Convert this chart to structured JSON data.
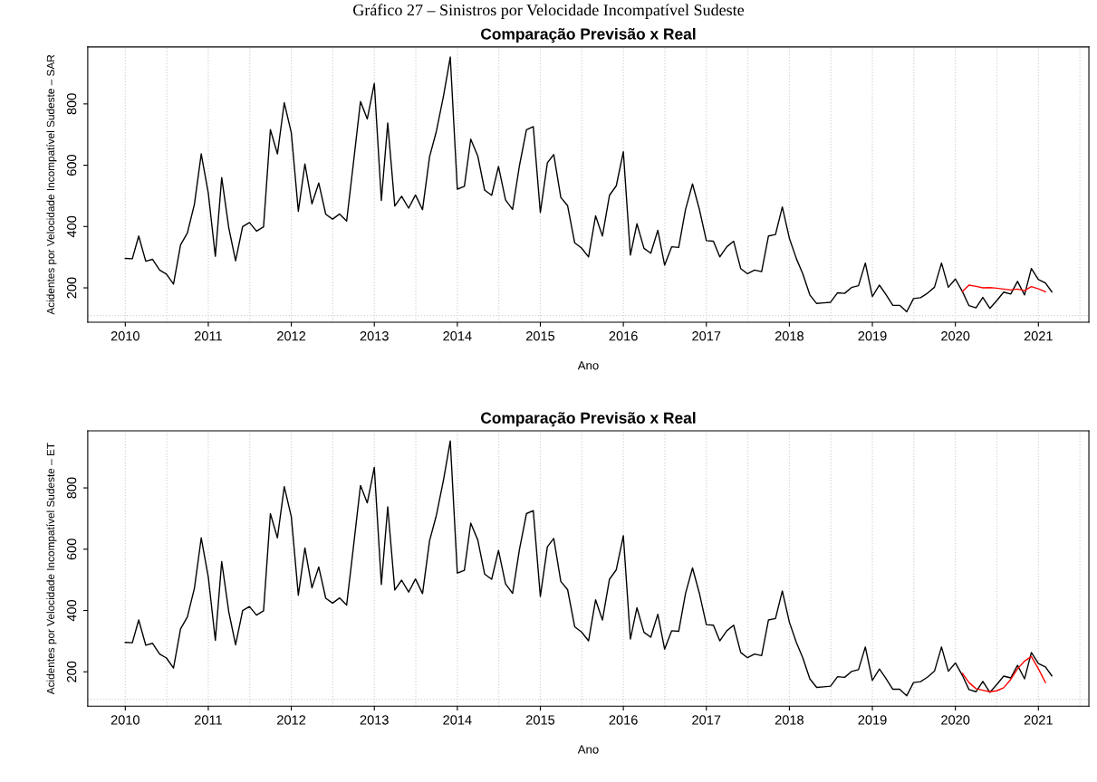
{
  "chart_data": [
    {
      "type": "line",
      "title": "Comparação Previsão x Real",
      "xlabel": "Ano",
      "ylabel": "Acidentes por Velocidade Incompatível Sudeste – SAR",
      "annotations": [
        "Gráfico 27 – Sinistros por Velocidade Incompatível Sudeste"
      ],
      "x": [
        "2010-01",
        "2010-02",
        "2010-03",
        "2010-04",
        "2010-05",
        "2010-06",
        "2010-07",
        "2010-08",
        "2010-09",
        "2010-10",
        "2010-11",
        "2010-12",
        "2011-01",
        "2011-02",
        "2011-03",
        "2011-04",
        "2011-05",
        "2011-06",
        "2011-07",
        "2011-08",
        "2011-09",
        "2011-10",
        "2011-11",
        "2011-12",
        "2012-01",
        "2012-02",
        "2012-03",
        "2012-04",
        "2012-05",
        "2012-06",
        "2012-07",
        "2012-08",
        "2012-09",
        "2012-10",
        "2012-11",
        "2012-12",
        "2013-01",
        "2013-02",
        "2013-03",
        "2013-04",
        "2013-05",
        "2013-06",
        "2013-07",
        "2013-08",
        "2013-09",
        "2013-10",
        "2013-11",
        "2013-12",
        "2014-01",
        "2014-02",
        "2014-03",
        "2014-04",
        "2014-05",
        "2014-06",
        "2014-07",
        "2014-08",
        "2014-09",
        "2014-10",
        "2014-11",
        "2014-12",
        "2015-01",
        "2015-02",
        "2015-03",
        "2015-04",
        "2015-05",
        "2015-06",
        "2015-07",
        "2015-08",
        "2015-09",
        "2015-10",
        "2015-11",
        "2015-12",
        "2016-01",
        "2016-02",
        "2016-03",
        "2016-04",
        "2016-05",
        "2016-06",
        "2016-07",
        "2016-08",
        "2016-09",
        "2016-10",
        "2016-11",
        "2016-12",
        "2017-01",
        "2017-02",
        "2017-03",
        "2017-04",
        "2017-05",
        "2017-06",
        "2017-07",
        "2017-08",
        "2017-09",
        "2017-10",
        "2017-11",
        "2017-12",
        "2018-01",
        "2018-02",
        "2018-03",
        "2018-04",
        "2018-05",
        "2018-06",
        "2018-07",
        "2018-08",
        "2018-09",
        "2018-10",
        "2018-11",
        "2018-12",
        "2019-01",
        "2019-02",
        "2019-03",
        "2019-04",
        "2019-05",
        "2019-06",
        "2019-07",
        "2019-08",
        "2019-09",
        "2019-10",
        "2019-11",
        "2019-12",
        "2020-01",
        "2020-02",
        "2020-03",
        "2020-04",
        "2020-05",
        "2020-06",
        "2020-07",
        "2020-08",
        "2020-09",
        "2020-10",
        "2020-11",
        "2020-12",
        "2021-01",
        "2021-02",
        "2021-03"
      ],
      "series": [
        {
          "color": "#000000",
          "values": [
            296,
            295,
            369,
            287,
            293,
            258,
            245,
            212,
            340,
            379,
            473,
            637,
            509,
            303,
            560,
            396,
            288,
            400,
            413,
            385,
            399,
            716,
            637,
            804,
            706,
            450,
            604,
            474,
            542,
            440,
            424,
            441,
            418,
            608,
            808,
            751,
            867,
            485,
            738,
            467,
            499,
            460,
            503,
            455,
            628,
            711,
            825,
            953,
            522,
            531,
            685,
            630,
            519,
            502,
            596,
            487,
            456,
            598,
            716,
            726,
            446,
            608,
            635,
            495,
            468,
            347,
            330,
            301,
            435,
            369,
            502,
            533,
            644,
            307,
            409,
            329,
            313,
            388,
            274,
            334,
            332,
            455,
            539,
            457,
            354,
            352,
            301,
            334,
            352,
            263,
            246,
            258,
            253,
            369,
            374,
            464,
            362,
            295,
            246,
            177,
            149,
            151,
            153,
            184,
            182,
            201,
            207,
            281,
            172,
            209,
            179,
            143,
            143,
            122,
            165,
            168,
            183,
            202,
            281,
            202,
            229,
            188,
            142,
            135,
            169,
            133,
            158,
            186,
            180,
            221,
            177,
            263,
            227,
            216,
            187
          ]
        },
        {
          "color": "#ff0000",
          "x": [
            "2020-02",
            "2020-03",
            "2020-04",
            "2020-05",
            "2020-06",
            "2020-07",
            "2020-08",
            "2020-09",
            "2020-10",
            "2020-11",
            "2020-12",
            "2021-01",
            "2021-02"
          ],
          "values": [
            188,
            209,
            205,
            200,
            201,
            199,
            196,
            193,
            196,
            191,
            204,
            197,
            187
          ]
        }
      ],
      "xlim": [
        "2009-07-20",
        "2021-08-11"
      ],
      "xticks": [
        {
          "value": "2010",
          "label": "2010"
        },
        {
          "value": "2011",
          "label": "2011"
        },
        {
          "value": "2012",
          "label": "2012"
        },
        {
          "value": "2013",
          "label": "2013"
        },
        {
          "value": "2014",
          "label": "2014"
        },
        {
          "value": "2015",
          "label": "2015"
        },
        {
          "value": "2016",
          "label": "2016"
        },
        {
          "value": "2017",
          "label": "2017"
        },
        {
          "value": "2018",
          "label": "2018"
        },
        {
          "value": "2019",
          "label": "2019"
        },
        {
          "value": "2020",
          "label": "2020"
        },
        {
          "value": "2021",
          "label": "2021"
        }
      ],
      "ylim": [
        88,
        986
      ],
      "yticks": [
        200,
        400,
        600,
        800
      ],
      "grid": "x",
      "ref_lines": [
        {
          "axis": "y",
          "value": 110,
          "color": "#d3d3d3",
          "line_style": "dotted"
        }
      ]
    },
    {
      "type": "line",
      "title": "Comparação Previsão x Real",
      "xlabel": "Ano",
      "ylabel": "Acidentes por Velocidade Incompatível Sudeste – ET",
      "x": [
        "2010-01",
        "2010-02",
        "2010-03",
        "2010-04",
        "2010-05",
        "2010-06",
        "2010-07",
        "2010-08",
        "2010-09",
        "2010-10",
        "2010-11",
        "2010-12",
        "2011-01",
        "2011-02",
        "2011-03",
        "2011-04",
        "2011-05",
        "2011-06",
        "2011-07",
        "2011-08",
        "2011-09",
        "2011-10",
        "2011-11",
        "2011-12",
        "2012-01",
        "2012-02",
        "2012-03",
        "2012-04",
        "2012-05",
        "2012-06",
        "2012-07",
        "2012-08",
        "2012-09",
        "2012-10",
        "2012-11",
        "2012-12",
        "2013-01",
        "2013-02",
        "2013-03",
        "2013-04",
        "2013-05",
        "2013-06",
        "2013-07",
        "2013-08",
        "2013-09",
        "2013-10",
        "2013-11",
        "2013-12",
        "2014-01",
        "2014-02",
        "2014-03",
        "2014-04",
        "2014-05",
        "2014-06",
        "2014-07",
        "2014-08",
        "2014-09",
        "2014-10",
        "2014-11",
        "2014-12",
        "2015-01",
        "2015-02",
        "2015-03",
        "2015-04",
        "2015-05",
        "2015-06",
        "2015-07",
        "2015-08",
        "2015-09",
        "2015-10",
        "2015-11",
        "2015-12",
        "2016-01",
        "2016-02",
        "2016-03",
        "2016-04",
        "2016-05",
        "2016-06",
        "2016-07",
        "2016-08",
        "2016-09",
        "2016-10",
        "2016-11",
        "2016-12",
        "2017-01",
        "2017-02",
        "2017-03",
        "2017-04",
        "2017-05",
        "2017-06",
        "2017-07",
        "2017-08",
        "2017-09",
        "2017-10",
        "2017-11",
        "2017-12",
        "2018-01",
        "2018-02",
        "2018-03",
        "2018-04",
        "2018-05",
        "2018-06",
        "2018-07",
        "2018-08",
        "2018-09",
        "2018-10",
        "2018-11",
        "2018-12",
        "2019-01",
        "2019-02",
        "2019-03",
        "2019-04",
        "2019-05",
        "2019-06",
        "2019-07",
        "2019-08",
        "2019-09",
        "2019-10",
        "2019-11",
        "2019-12",
        "2020-01",
        "2020-02",
        "2020-03",
        "2020-04",
        "2020-05",
        "2020-06",
        "2020-07",
        "2020-08",
        "2020-09",
        "2020-10",
        "2020-11",
        "2020-12",
        "2021-01",
        "2021-02",
        "2021-03"
      ],
      "series": [
        {
          "color": "#000000",
          "values": [
            296,
            295,
            369,
            287,
            293,
            258,
            245,
            212,
            340,
            379,
            473,
            637,
            509,
            303,
            560,
            396,
            288,
            400,
            413,
            385,
            399,
            716,
            637,
            804,
            706,
            450,
            604,
            474,
            542,
            440,
            424,
            441,
            418,
            608,
            808,
            751,
            867,
            485,
            738,
            467,
            499,
            460,
            503,
            455,
            628,
            711,
            825,
            953,
            522,
            531,
            685,
            630,
            519,
            502,
            596,
            487,
            456,
            598,
            716,
            726,
            446,
            608,
            635,
            495,
            468,
            347,
            330,
            301,
            435,
            369,
            502,
            533,
            644,
            307,
            409,
            329,
            313,
            388,
            274,
            334,
            332,
            455,
            539,
            457,
            354,
            352,
            301,
            334,
            352,
            263,
            246,
            258,
            253,
            369,
            374,
            464,
            362,
            295,
            246,
            177,
            149,
            151,
            153,
            184,
            182,
            201,
            207,
            281,
            172,
            209,
            179,
            143,
            143,
            122,
            165,
            168,
            183,
            202,
            281,
            202,
            229,
            188,
            142,
            135,
            169,
            133,
            158,
            186,
            180,
            221,
            177,
            263,
            227,
            216,
            187
          ]
        },
        {
          "color": "#ff0000",
          "x": [
            "2020-02",
            "2020-03",
            "2020-04",
            "2020-05",
            "2020-06",
            "2020-07",
            "2020-08",
            "2020-09",
            "2020-10",
            "2020-11",
            "2020-12",
            "2021-01",
            "2021-02"
          ],
          "values": [
            195,
            165,
            145,
            140,
            135,
            138,
            148,
            175,
            210,
            235,
            250,
            210,
            165
          ]
        }
      ],
      "xlim": [
        "2009-07-20",
        "2021-08-11"
      ],
      "xticks": [
        {
          "value": "2010",
          "label": "2010"
        },
        {
          "value": "2011",
          "label": "2011"
        },
        {
          "value": "2012",
          "label": "2012"
        },
        {
          "value": "2013",
          "label": "2013"
        },
        {
          "value": "2014",
          "label": "2014"
        },
        {
          "value": "2015",
          "label": "2015"
        },
        {
          "value": "2016",
          "label": "2016"
        },
        {
          "value": "2017",
          "label": "2017"
        },
        {
          "value": "2018",
          "label": "2018"
        },
        {
          "value": "2019",
          "label": "2019"
        },
        {
          "value": "2020",
          "label": "2020"
        },
        {
          "value": "2021",
          "label": "2021"
        }
      ],
      "ylim": [
        88,
        986
      ],
      "yticks": [
        200,
        400,
        600,
        800
      ],
      "grid": "x",
      "ref_lines": [
        {
          "axis": "y",
          "value": 110,
          "color": "#d3d3d3",
          "line_style": "dotted"
        }
      ]
    }
  ]
}
